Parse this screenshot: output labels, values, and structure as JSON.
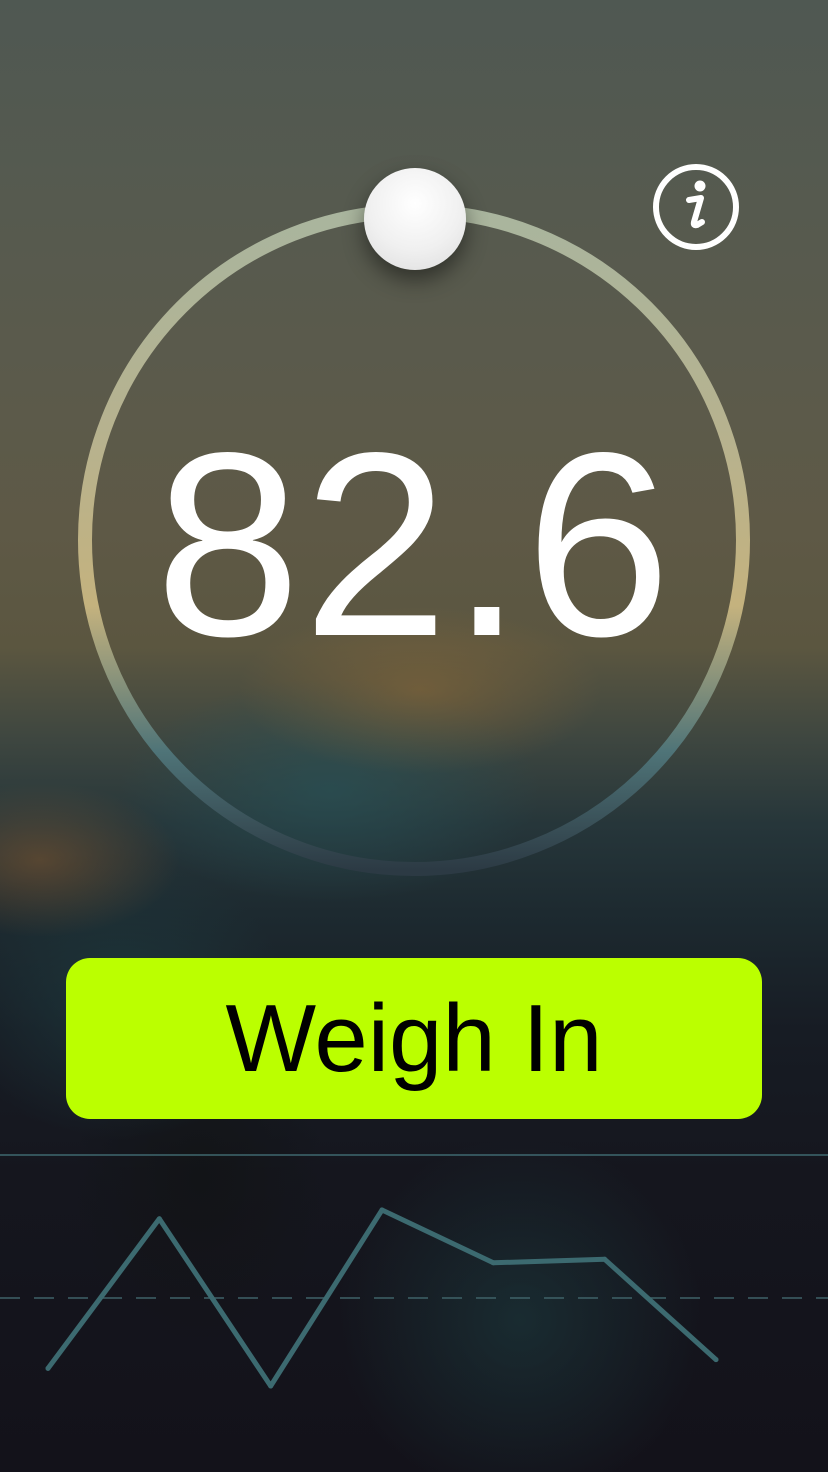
{
  "weight": {
    "value": "82.6"
  },
  "slider": {
    "position_fraction": 0.0
  },
  "actions": {
    "weigh_in_label": "Weigh In",
    "info_icon": "info-icon"
  },
  "colors": {
    "accent": "#bbff00",
    "trend_line": "#3c6a70",
    "dial_ring_top": "#a9b59e",
    "dial_ring_mid": "#c9b27b",
    "dial_ring_bottom": "#2c3a44"
  },
  "chart_data": {
    "type": "line",
    "title": "",
    "xlabel": "",
    "ylabel": "",
    "x": [
      1,
      2,
      3,
      4,
      5,
      6,
      7
    ],
    "series": [
      {
        "values": [
          0.1,
          0.95,
          0.0,
          1.0,
          0.7,
          0.72,
          0.15
        ]
      }
    ],
    "reference_line": 0.5,
    "grid": false,
    "legend": "none"
  }
}
